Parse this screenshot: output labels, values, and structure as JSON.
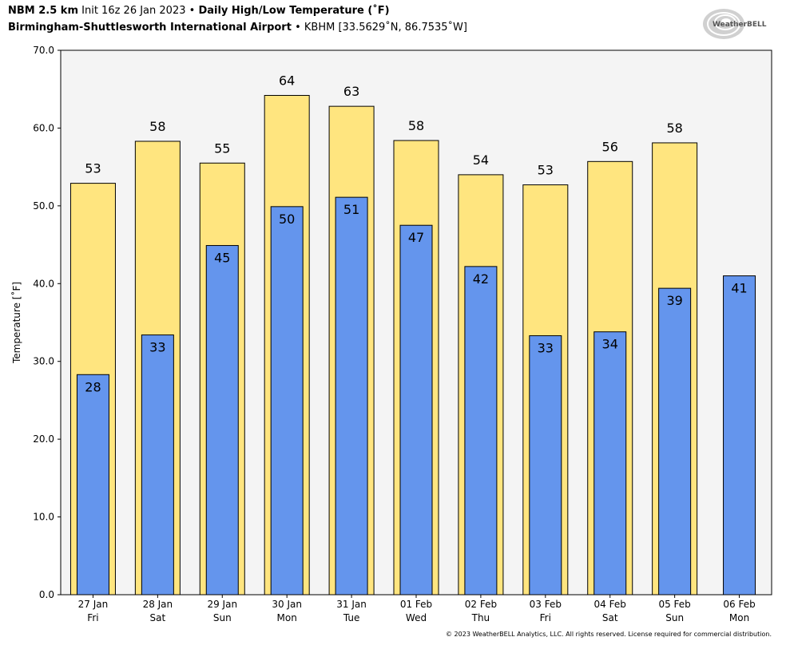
{
  "header": {
    "model": "NBM 2.5 km",
    "init": "Init 16z 26 Jan 2023",
    "bullet": "•",
    "product": "Daily High/Low Temperature (˚F)",
    "station_name": "Birmingham-Shuttlesworth International Airport",
    "station_info": "KBHM [33.5629˚N, 86.7535˚W]"
  },
  "logo": {
    "text": "WeatherBELL",
    "icon": "weatherbell-swirl-logo"
  },
  "copyright": "© 2023 WeatherBELL Analytics, LLC. All rights reserved. License required for commercial distribution.",
  "colors": {
    "high": "#FFE57F",
    "low": "#6495ED",
    "plot_bg": "#F4F4F4"
  },
  "chart_data": {
    "type": "bar",
    "ylabel": "Temperature [˚F]",
    "ylim": [
      0,
      70
    ],
    "yticks": [
      "0.0",
      "10.0",
      "20.0",
      "30.0",
      "40.0",
      "50.0",
      "60.0",
      "70.0"
    ],
    "categories": [
      "27 Jan",
      "28 Jan",
      "29 Jan",
      "30 Jan",
      "31 Jan",
      "01 Feb",
      "02 Feb",
      "03 Feb",
      "04 Feb",
      "05 Feb",
      "06 Feb"
    ],
    "weekdays": [
      "Fri",
      "Sat",
      "Sun",
      "Mon",
      "Tue",
      "Wed",
      "Thu",
      "Fri",
      "Sat",
      "Sun",
      "Mon"
    ],
    "series": [
      {
        "values": [
          52.9,
          58.3,
          55.5,
          64.2,
          62.8,
          58.4,
          54.0,
          52.7,
          55.7,
          58.1,
          null
        ],
        "labels": [
          "53",
          "58",
          "55",
          "64",
          "63",
          "58",
          "54",
          "53",
          "56",
          "58",
          ""
        ]
      },
      {
        "values": [
          28.3,
          33.4,
          44.9,
          49.9,
          51.1,
          47.5,
          42.2,
          33.3,
          33.8,
          39.4,
          41.0
        ],
        "labels": [
          "28",
          "33",
          "45",
          "50",
          "51",
          "47",
          "42",
          "33",
          "34",
          "39",
          "41"
        ]
      }
    ],
    "grid": false,
    "legend": "none"
  }
}
